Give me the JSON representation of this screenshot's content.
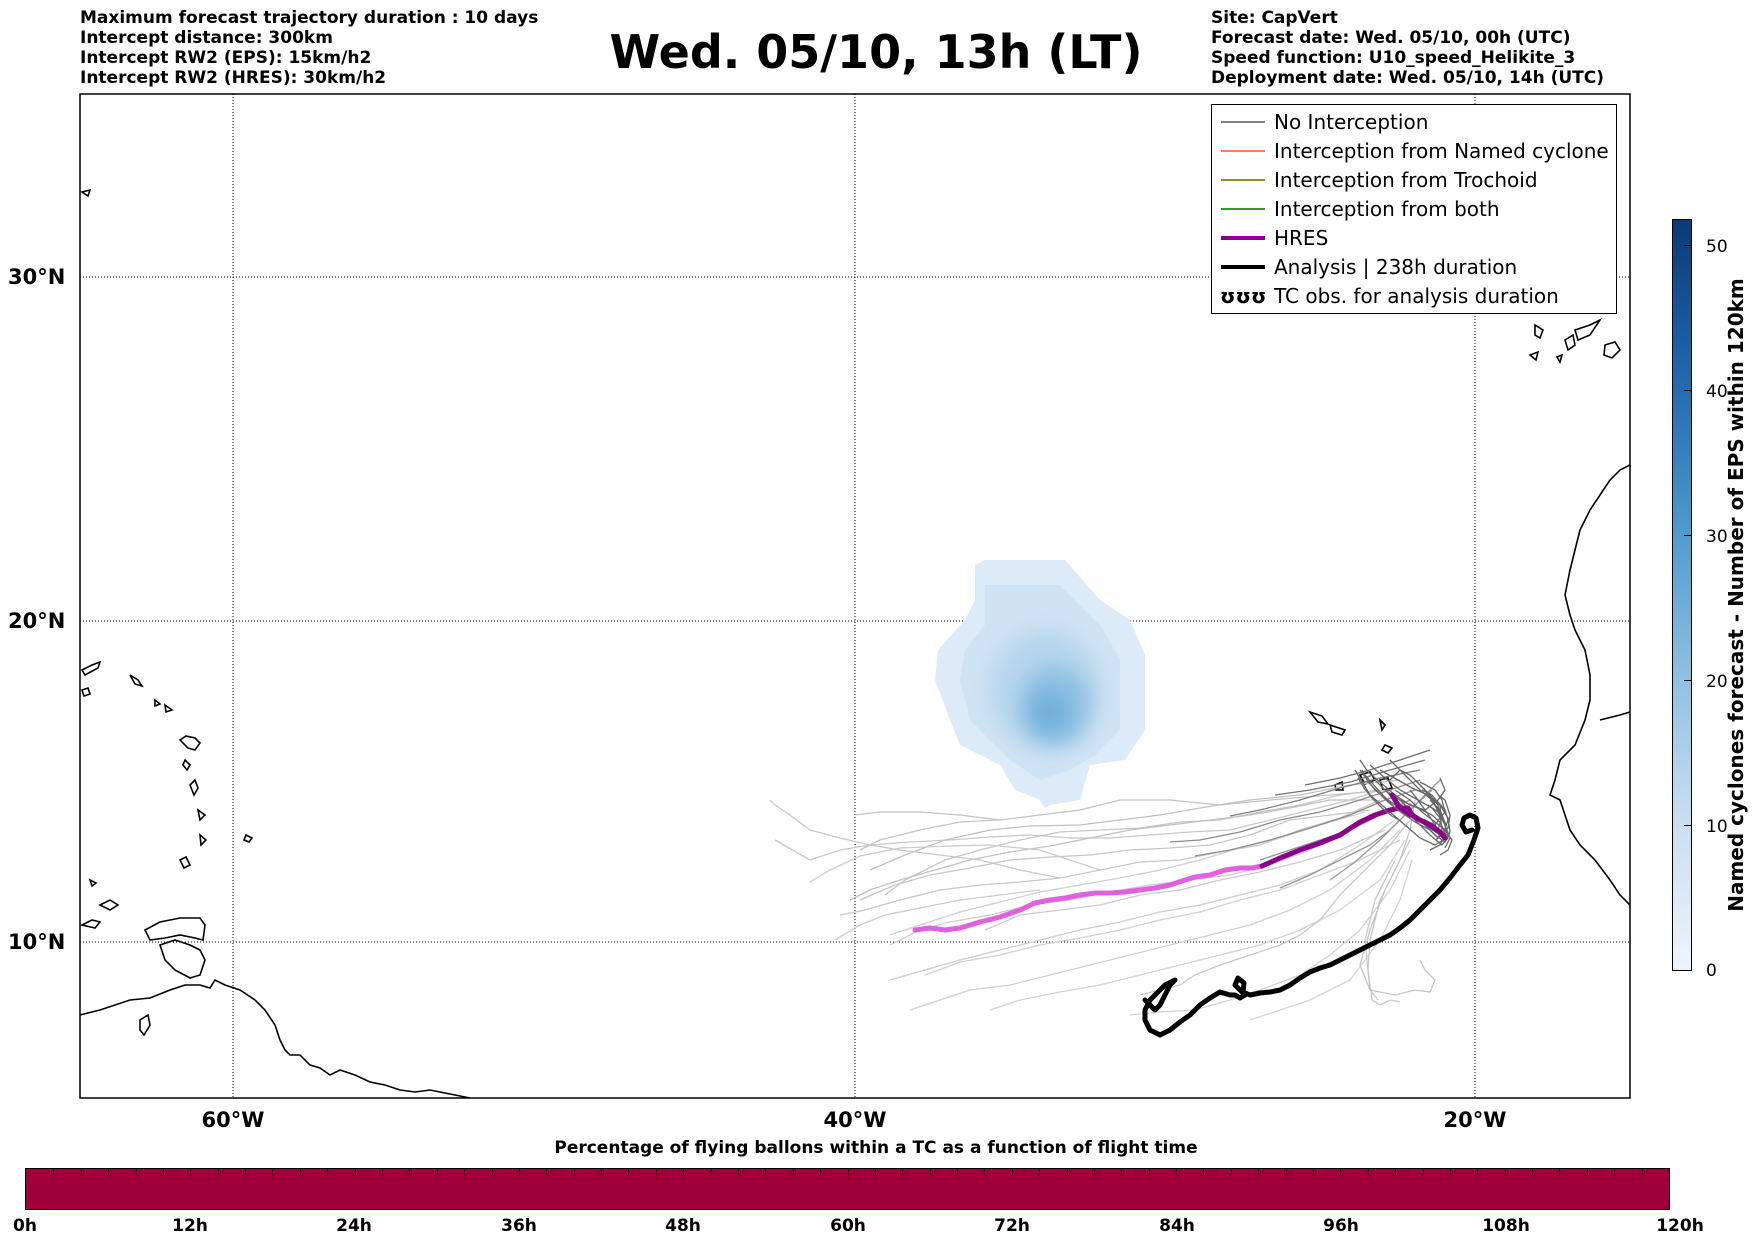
{
  "header": {
    "info_left": [
      "Maximum forecast trajectory duration : 10 days",
      "Intercept distance: 300km",
      "Intercept RW2 (EPS):  15km/h2",
      "Intercept RW2 (HRES): 30km/h2"
    ],
    "title": "Wed. 05/10, 13h (LT)",
    "info_right": [
      "Site: CapVert",
      "Forecast date: Wed. 05/10, 00h (UTC)",
      "Speed function: U10_speed_Helikite_3",
      "Deployment date: Wed. 05/10, 14h (UTC)"
    ]
  },
  "map": {
    "lat_ticks": [
      "30°N",
      "20°N",
      "10°N"
    ],
    "lon_ticks": [
      "60°W",
      "40°W",
      "20°W"
    ],
    "legend": [
      {
        "label": "No Interception",
        "color": "#808080",
        "style": "thin"
      },
      {
        "label": "Interception from Named cyclone",
        "color": "#ff7f50",
        "style": "thin"
      },
      {
        "label": "Interception from Trochoid",
        "color": "#9b8a2a",
        "style": "thin"
      },
      {
        "label": "Interception from both",
        "color": "#2ca02c",
        "style": "thin"
      },
      {
        "label": "HRES",
        "color": "#8b008b",
        "style": "thick"
      },
      {
        "label": "Analysis | 238h duration",
        "color": "#000000",
        "style": "thick"
      },
      {
        "label": "TC obs. for analysis duration",
        "color": "#000000",
        "style": "symbol",
        "symbol": "ʊʊʊ"
      }
    ]
  },
  "colorbar_right": {
    "label": "Named cyclones forecast - Number of EPS within 120km",
    "ticks": [
      "50",
      "40",
      "30",
      "20",
      "10",
      "0"
    ]
  },
  "colorbar_bottom": {
    "title": "Percentage of flying ballons within a TC as a function of flight time",
    "color": "#a0003a",
    "ticks": [
      "0h",
      "12h",
      "24h",
      "36h",
      "48h",
      "60h",
      "72h",
      "84h",
      "96h",
      "108h",
      "120h"
    ]
  }
}
